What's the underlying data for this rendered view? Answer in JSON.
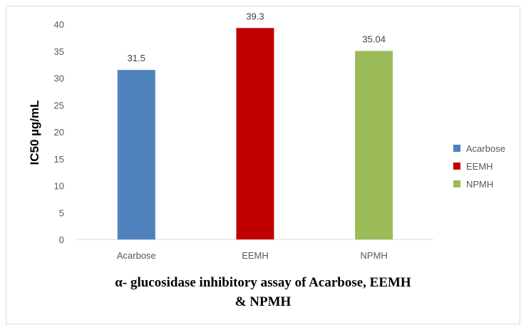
{
  "chart_data": {
    "type": "bar",
    "categories": [
      "Acarbose",
      "EEMH",
      "NPMH"
    ],
    "values": [
      31.5,
      39.3,
      35.04
    ],
    "value_labels": [
      "31.5",
      "39.3",
      "35.04"
    ],
    "colors": [
      "#4f81bd",
      "#c00000",
      "#9bbb59"
    ],
    "ylabel": "IC50 µg/mL",
    "xlabel": "",
    "ylim": [
      0,
      40
    ],
    "yticks": [
      0,
      5,
      10,
      15,
      20,
      25,
      30,
      35,
      40
    ],
    "grid": false,
    "legend": {
      "placement": "right",
      "entries": [
        "Acarbose",
        "EEMH",
        "NPMH"
      ]
    },
    "caption_line1": "α- glucosidase inhibitory assay of Acarbose, EEMH",
    "caption_line2": "& NPMH"
  }
}
